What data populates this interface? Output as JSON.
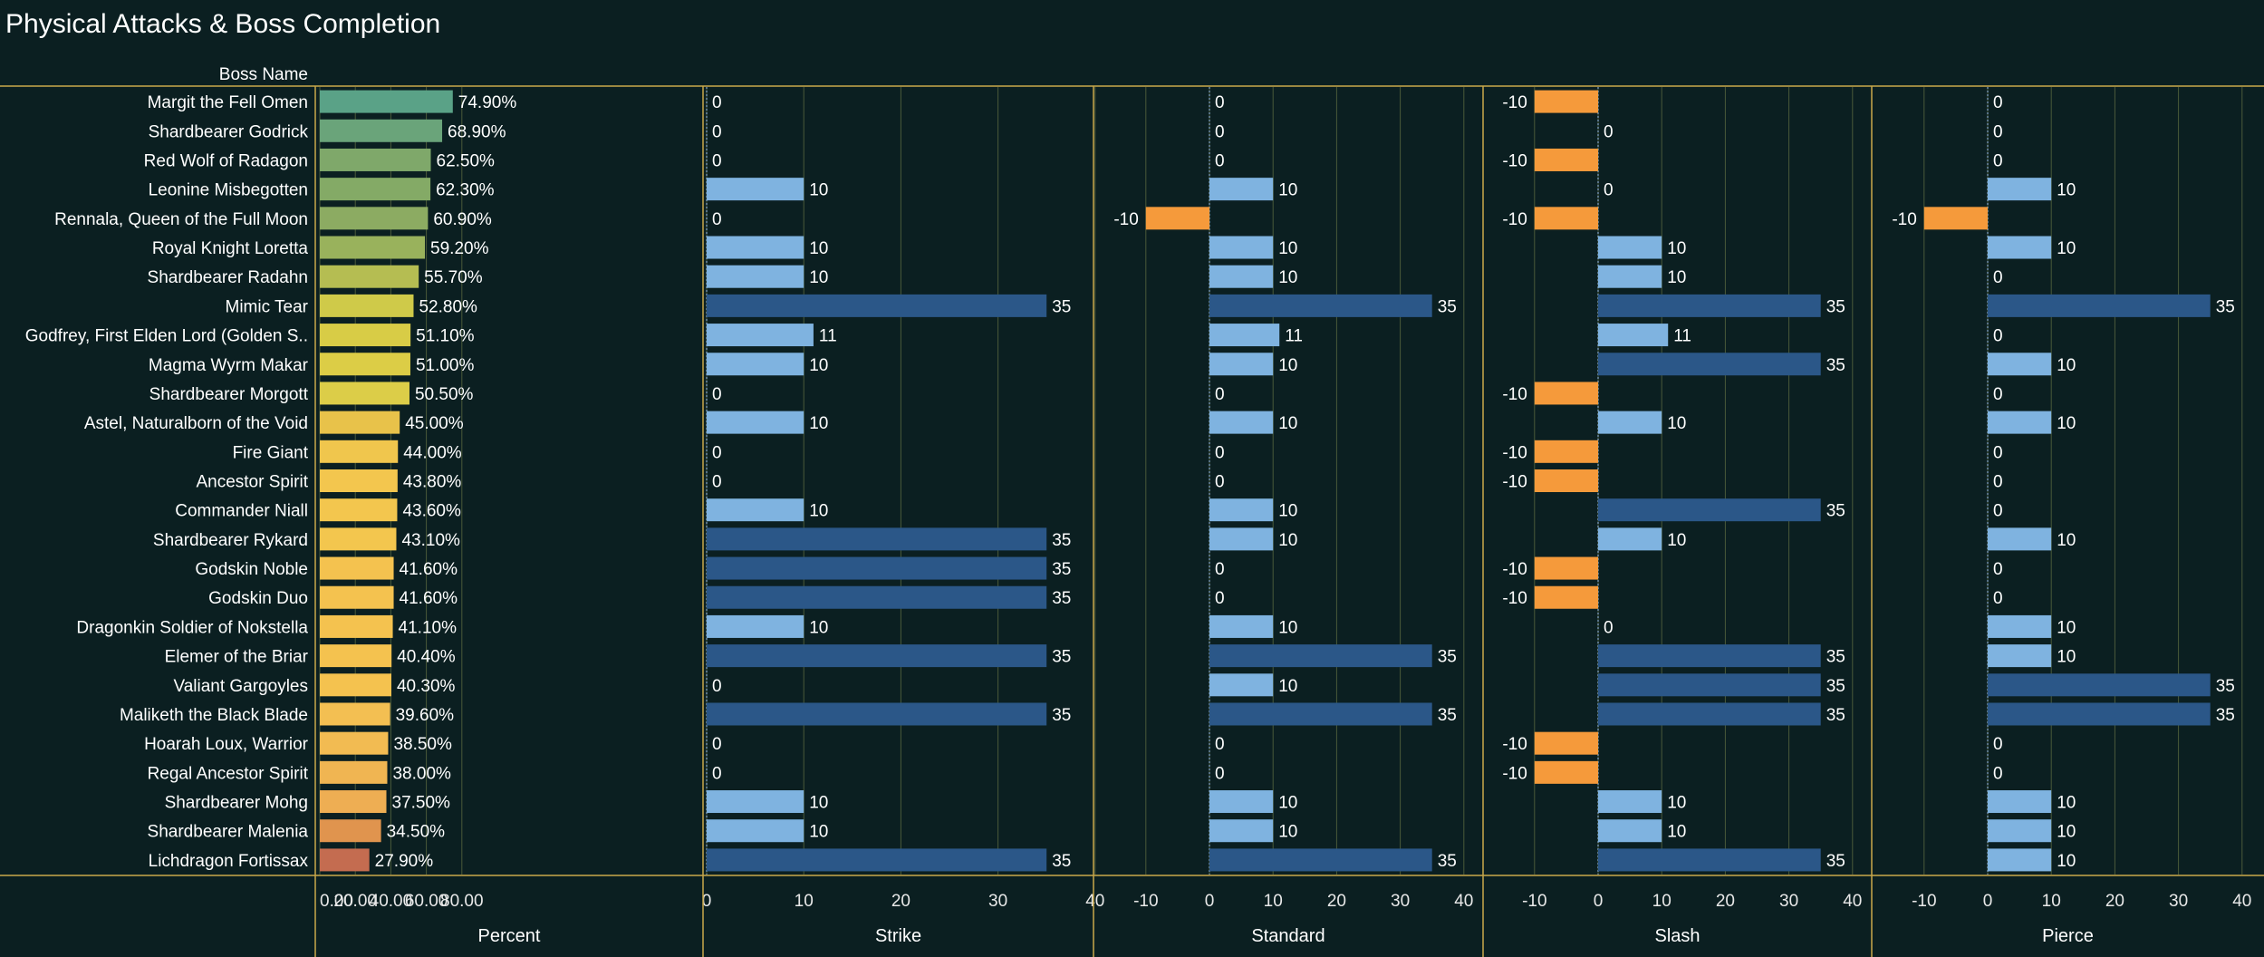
{
  "title": "Physical Attacks & Boss Completion",
  "row_header": "Boss Name",
  "colors": {
    "background": "#0b1f21",
    "frame": "#c9a84a",
    "grid": "#4a5a3a",
    "zero_line": "#8aa8c8",
    "light_blue": "#7fb3e0",
    "dark_blue": "#2b5788",
    "orange": "#f59a3b"
  },
  "chart_data": {
    "type": "bar",
    "orientation": "horizontal",
    "categories": [
      "Margit the Fell Omen",
      "Shardbearer Godrick",
      "Red Wolf of Radagon",
      "Leonine Misbegotten",
      "Rennala, Queen of the Full Moon",
      "Royal Knight Loretta",
      "Shardbearer Radahn",
      "Mimic Tear",
      "Godfrey, First Elden Lord (Golden S..",
      "Magma Wyrm Makar",
      "Shardbearer Morgott",
      "Astel, Naturalborn of the Void",
      "Fire Giant",
      "Ancestor Spirit",
      "Commander Niall",
      "Shardbearer Rykard",
      "Godskin Noble",
      "Godskin Duo",
      "Dragonkin Soldier of Nokstella",
      "Elemer of the Briar",
      "Valiant Gargoyles",
      "Maliketh the Black Blade",
      "Hoarah Loux, Warrior",
      "Regal Ancestor Spirit",
      "Shardbearer Mohg",
      "Shardbearer Malenia",
      "Lichdragon Fortissax"
    ],
    "series": [
      {
        "name": "Percent",
        "axis_ticks": [
          "0.00",
          "20.00",
          "40.00",
          "60.00",
          "80.00"
        ],
        "xlim": [
          0,
          100
        ],
        "values": [
          74.9,
          68.9,
          62.5,
          62.3,
          60.9,
          59.2,
          55.7,
          52.8,
          51.1,
          51.0,
          50.5,
          45.0,
          44.0,
          43.8,
          43.6,
          43.1,
          41.6,
          41.6,
          41.1,
          40.4,
          40.3,
          39.6,
          38.5,
          38.0,
          37.5,
          34.5,
          27.9
        ],
        "labels": [
          "74.90%",
          "68.90%",
          "62.50%",
          "62.30%",
          "60.90%",
          "59.20%",
          "55.70%",
          "52.80%",
          "51.10%",
          "51.00%",
          "50.50%",
          "45.00%",
          "44.00%",
          "43.80%",
          "43.60%",
          "43.10%",
          "41.60%",
          "41.60%",
          "41.10%",
          "40.40%",
          "40.30%",
          "39.60%",
          "38.50%",
          "38.00%",
          "37.50%",
          "34.50%",
          "27.90%"
        ],
        "bar_colors": [
          "#5aa287",
          "#6aa47a",
          "#7fa86a",
          "#84aa66",
          "#8cab62",
          "#99b25c",
          "#b5bd52",
          "#cfca49",
          "#d8cc46",
          "#dccd46",
          "#dccd48",
          "#e8c24a",
          "#f0c64d",
          "#f3c64e",
          "#f3c64e",
          "#f3c64e",
          "#f4c24f",
          "#f4c24f",
          "#f4c24f",
          "#f4c24f",
          "#f4c24f",
          "#f3bf52",
          "#f2bb52",
          "#f0b552",
          "#eeae53",
          "#e0944e",
          "#c46c50"
        ]
      },
      {
        "name": "Strike",
        "axis_ticks": [
          "0",
          "10",
          "20",
          "30",
          "40"
        ],
        "xlim": [
          0,
          40
        ],
        "values": [
          0,
          0,
          0,
          10,
          0,
          10,
          10,
          35,
          11,
          10,
          0,
          10,
          0,
          0,
          10,
          35,
          35,
          35,
          10,
          35,
          0,
          35,
          0,
          0,
          10,
          10,
          35
        ],
        "labels": [
          "0",
          "0",
          "0",
          "10",
          "0",
          "10",
          "10",
          "35",
          "11",
          "10",
          "0",
          "10",
          "0",
          "0",
          "10",
          "35",
          "35",
          "35",
          "10",
          "35",
          "0",
          "35",
          "0",
          "0",
          "10",
          "10",
          "35"
        ]
      },
      {
        "name": "Standard",
        "axis_ticks": [
          "-10",
          "0",
          "10",
          "20",
          "30",
          "40"
        ],
        "xlim": [
          -15,
          40
        ],
        "values": [
          0,
          0,
          0,
          10,
          -10,
          10,
          10,
          35,
          11,
          10,
          0,
          10,
          0,
          0,
          10,
          10,
          0,
          0,
          10,
          35,
          10,
          35,
          0,
          0,
          10,
          10,
          35
        ],
        "labels": [
          "0",
          "0",
          "0",
          "10",
          "-10",
          "10",
          "10",
          "35",
          "11",
          "10",
          "0",
          "10",
          "0",
          "0",
          "10",
          "10",
          "0",
          "0",
          "10",
          "35",
          "10",
          "35",
          "0",
          "0",
          "10",
          "10",
          "35"
        ]
      },
      {
        "name": "Slash",
        "axis_ticks": [
          "-10",
          "0",
          "10",
          "20",
          "30",
          "40"
        ],
        "xlim": [
          -15,
          40
        ],
        "values": [
          -10,
          0,
          -10,
          0,
          -10,
          10,
          10,
          35,
          11,
          35,
          -10,
          10,
          -10,
          -10,
          35,
          10,
          -10,
          -10,
          0,
          35,
          35,
          35,
          -10,
          -10,
          10,
          10,
          35
        ],
        "labels": [
          "-10",
          "0",
          "-10",
          "0",
          "-10",
          "10",
          "10",
          "35",
          "11",
          "35",
          "-10",
          "10",
          "-10",
          "-10",
          "35",
          "10",
          "-10",
          "-10",
          "0",
          "35",
          "35",
          "35",
          "-10",
          "-10",
          "10",
          "10",
          "35"
        ]
      },
      {
        "name": "Pierce",
        "axis_ticks": [
          "-10",
          "0",
          "10",
          "20",
          "30",
          "40"
        ],
        "xlim": [
          -15,
          40
        ],
        "values": [
          0,
          0,
          0,
          10,
          -10,
          10,
          0,
          35,
          0,
          10,
          0,
          10,
          0,
          0,
          0,
          10,
          0,
          0,
          10,
          10,
          35,
          35,
          0,
          0,
          10,
          10,
          10
        ],
        "labels": [
          "0",
          "0",
          "0",
          "10",
          "-10",
          "10",
          "0",
          "35",
          "0",
          "10",
          "0",
          "10",
          "0",
          "0",
          "0",
          "10",
          "0",
          "0",
          "10",
          "10",
          "35",
          "35",
          "0",
          "0",
          "10",
          "10",
          "10"
        ]
      }
    ]
  }
}
